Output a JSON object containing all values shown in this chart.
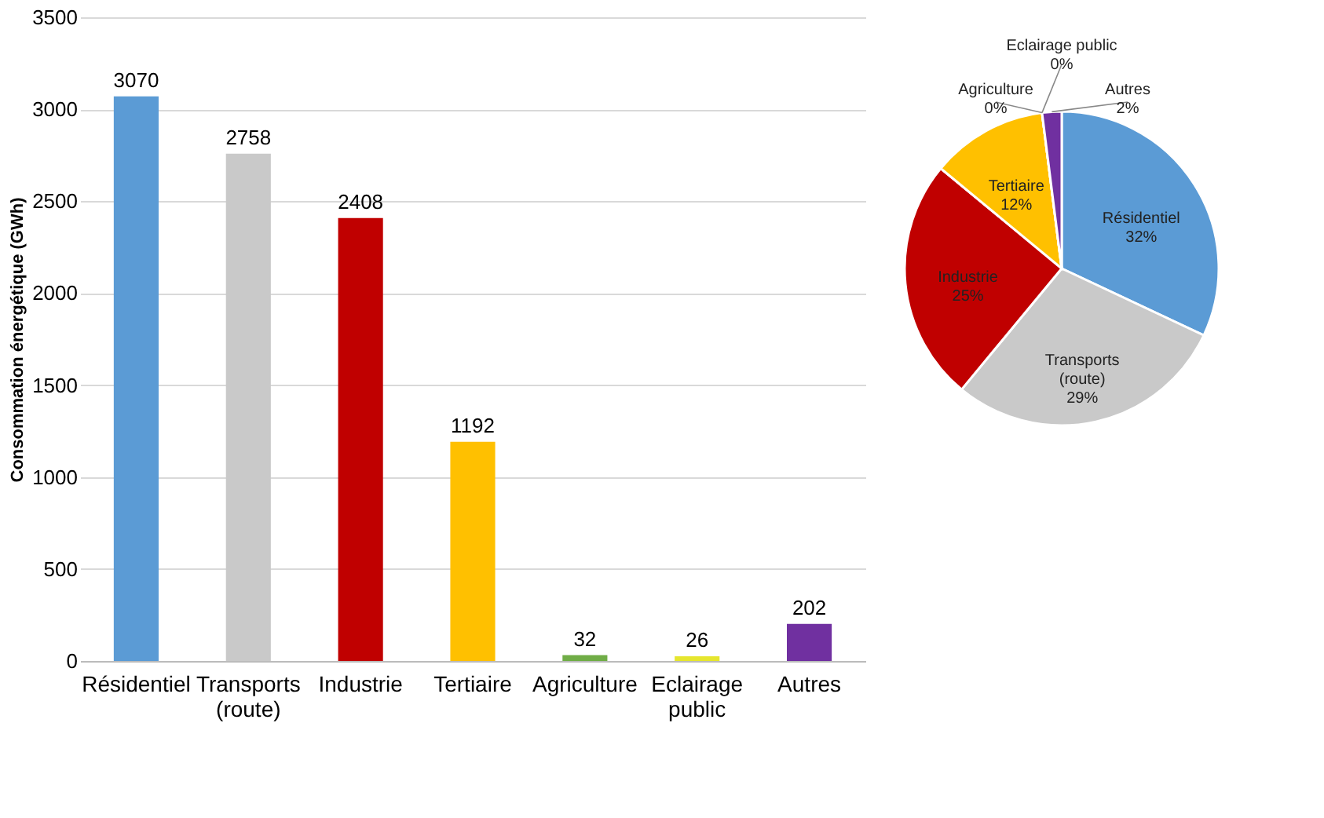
{
  "chart_data": [
    {
      "type": "bar",
      "ylabel": "Consommation énergétique (GWh)",
      "categories": [
        "Résidentiel",
        "Transports (route)",
        "Industrie",
        "Tertiaire",
        "Agriculture",
        "Eclairage public",
        "Autres"
      ],
      "values": [
        3070,
        2758,
        2408,
        1192,
        32,
        26,
        202
      ],
      "colors": [
        "#5b9bd5",
        "#c9c9c9",
        "#c00000",
        "#ffc000",
        "#70ad47",
        "#e6e62e",
        "#7030a0"
      ],
      "ylim": [
        0,
        3500
      ],
      "yticks": [
        0,
        500,
        1000,
        1500,
        2000,
        2500,
        3000,
        3500
      ],
      "grid": "y",
      "data_labels": true
    },
    {
      "type": "pie",
      "categories": [
        "Résidentiel",
        "Transports (route)",
        "Industrie",
        "Tertiaire",
        "Agriculture",
        "Eclairage public",
        "Autres"
      ],
      "values": [
        32,
        29,
        25,
        12,
        0,
        0,
        2
      ],
      "value_labels": [
        "32%",
        "29%",
        "25%",
        "12%",
        "0%",
        "0%",
        "2%"
      ],
      "colors": [
        "#5b9bd5",
        "#c9c9c9",
        "#c00000",
        "#ffc000",
        "#70ad47",
        "#e6e62e",
        "#7030a0"
      ]
    }
  ]
}
